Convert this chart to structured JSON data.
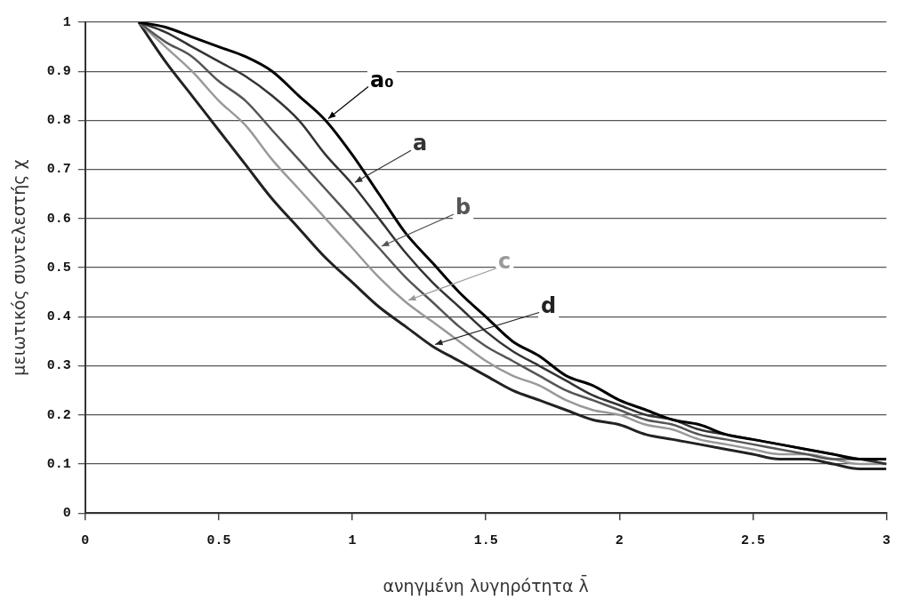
{
  "chart_data": {
    "type": "line",
    "xlabel": "ανηγμένη λυγηρότητα λ̄",
    "ylabel": "μειωτικός συντελεστής χ",
    "x": [
      0.2,
      0.3,
      0.4,
      0.5,
      0.6,
      0.7,
      0.8,
      0.9,
      1.0,
      1.1,
      1.2,
      1.3,
      1.4,
      1.5,
      1.6,
      1.7,
      1.8,
      1.9,
      2.0,
      2.1,
      2.2,
      2.3,
      2.4,
      2.5,
      2.6,
      2.7,
      2.8,
      2.9,
      3.0
    ],
    "series": [
      {
        "name": "a₀",
        "color": "#000000",
        "values": [
          1.0,
          0.99,
          0.97,
          0.95,
          0.93,
          0.9,
          0.85,
          0.8,
          0.73,
          0.65,
          0.57,
          0.51,
          0.45,
          0.4,
          0.35,
          0.32,
          0.28,
          0.26,
          0.23,
          0.21,
          0.19,
          0.18,
          0.16,
          0.15,
          0.14,
          0.13,
          0.12,
          0.11,
          0.11
        ]
      },
      {
        "name": "a",
        "color": "#333333",
        "values": [
          1.0,
          0.98,
          0.95,
          0.92,
          0.89,
          0.85,
          0.8,
          0.73,
          0.67,
          0.6,
          0.53,
          0.47,
          0.42,
          0.37,
          0.33,
          0.3,
          0.27,
          0.24,
          0.22,
          0.2,
          0.19,
          0.17,
          0.16,
          0.15,
          0.14,
          0.13,
          0.12,
          0.11,
          0.1
        ]
      },
      {
        "name": "b",
        "color": "#555555",
        "values": [
          1.0,
          0.96,
          0.93,
          0.88,
          0.84,
          0.78,
          0.72,
          0.66,
          0.6,
          0.54,
          0.48,
          0.43,
          0.38,
          0.34,
          0.31,
          0.28,
          0.25,
          0.23,
          0.21,
          0.19,
          0.18,
          0.16,
          0.15,
          0.14,
          0.13,
          0.12,
          0.11,
          0.11,
          0.1
        ]
      },
      {
        "name": "c",
        "color": "#999999",
        "values": [
          1.0,
          0.95,
          0.9,
          0.84,
          0.79,
          0.72,
          0.66,
          0.6,
          0.54,
          0.48,
          0.43,
          0.39,
          0.35,
          0.31,
          0.28,
          0.26,
          0.23,
          0.21,
          0.2,
          0.18,
          0.17,
          0.15,
          0.14,
          0.13,
          0.12,
          0.12,
          0.11,
          0.1,
          0.1
        ]
      },
      {
        "name": "d",
        "color": "#222222",
        "values": [
          1.0,
          0.92,
          0.85,
          0.78,
          0.71,
          0.64,
          0.58,
          0.52,
          0.47,
          0.42,
          0.38,
          0.34,
          0.31,
          0.28,
          0.25,
          0.23,
          0.21,
          0.19,
          0.18,
          0.16,
          0.15,
          0.14,
          0.13,
          0.12,
          0.11,
          0.11,
          0.1,
          0.09,
          0.09
        ]
      }
    ],
    "xlim": [
      0,
      3
    ],
    "xticks": [
      0,
      0.5,
      1,
      1.5,
      2,
      2.5,
      3
    ],
    "ylim": [
      0,
      1
    ],
    "yticks": [
      0,
      0.1,
      0.2,
      0.3,
      0.4,
      0.5,
      0.6,
      0.7,
      0.8,
      0.9,
      1
    ],
    "grid": "y",
    "legend": false,
    "marker": "none",
    "line_style": "solid"
  }
}
